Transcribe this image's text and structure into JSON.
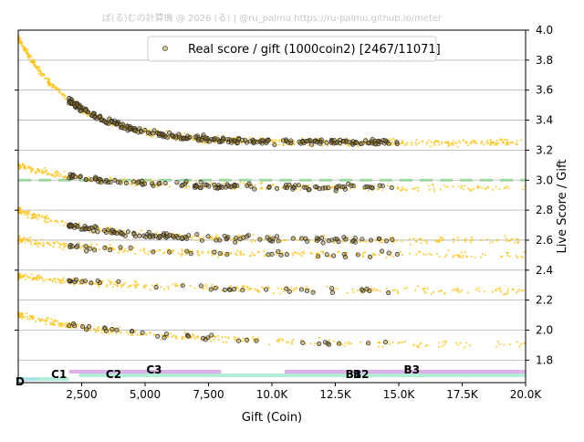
{
  "watermark": "ぱ(る)むの計算機 @ 2026 (る) | @ru_palmu  https://ru-palmu.github.io/meter",
  "chart_data": {
    "type": "scatter",
    "xlabel": "Gift (Coin)",
    "ylabel": "Live Score / Gift",
    "xlim": [
      0,
      20000
    ],
    "ylim": [
      1.65,
      4.0
    ],
    "x_ticks": [
      2500,
      5000,
      7500,
      10000,
      12500,
      15000,
      17500,
      20000
    ],
    "x_tick_labels": [
      "2,500",
      "5,000",
      "7,500",
      "10.0K",
      "12.5K",
      "15.0K",
      "17.5K",
      "20.0K"
    ],
    "y_ticks": [
      1.8,
      2.0,
      2.2,
      2.4,
      2.6,
      2.8,
      3.0,
      3.2,
      3.4,
      3.6,
      3.8,
      4.0
    ],
    "y_tick_labels": [
      "1.8",
      "2.0",
      "2.2",
      "2.4",
      "2.6",
      "2.8",
      "3.0",
      "3.2",
      "3.4",
      "3.6",
      "3.8",
      "4.0"
    ],
    "grid": "horizontal",
    "reference_line": {
      "y": 3.0,
      "style": "dashed",
      "color": "#9fd6a3"
    },
    "legend": {
      "placement": "top-center",
      "label": "Real score / gift (1000coin2) [2467/11071]"
    },
    "colors": {
      "background_points": "#ffc20e",
      "highlight_points": "#2b2b2b",
      "grid": "#b0b0b0"
    },
    "bands": [
      {
        "name": "real",
        "multiplier": 3.25,
        "decay": 0.7,
        "decay_scale": 2200
      },
      {
        "name": "real",
        "multiplier": 2.95,
        "decay": 0.15,
        "decay_scale": 3000
      },
      {
        "name": "real",
        "multiplier": 2.6,
        "decay": 0.2,
        "decay_scale": 3000
      },
      {
        "name": "real",
        "multiplier": 2.5,
        "decay": 0.1,
        "decay_scale": 4000
      },
      {
        "name": "real",
        "multiplier": 2.26,
        "decay": 0.1,
        "decay_scale": 5000
      },
      {
        "name": "real",
        "multiplier": 1.9,
        "decay": 0.2,
        "decay_scale": 5000
      }
    ],
    "rank_labels": [
      {
        "label": "D",
        "x": 0
      },
      {
        "label": "C1",
        "x": 1300
      },
      {
        "label": "C2",
        "x": 3450
      },
      {
        "label": "C3",
        "x": 5050
      },
      {
        "label": "B1",
        "x": 12900
      },
      {
        "label": "B2",
        "x": 13200
      },
      {
        "label": "B3",
        "x": 15200
      }
    ],
    "rank_bands": [
      {
        "x0": 300,
        "x1": 2000,
        "level": 2,
        "color": "#a8ecd0"
      },
      {
        "x0": 2000,
        "x1": 8000,
        "level": 0,
        "color": "#d6a8e6"
      },
      {
        "x0": 2400,
        "x1": 6000,
        "level": 1,
        "color": "#a8ecd0"
      },
      {
        "x0": 6000,
        "x1": 10500,
        "level": 1,
        "color": "#a8ecd0"
      },
      {
        "x0": 10500,
        "x1": 20000,
        "level": 0,
        "color": "#d6a8e6"
      },
      {
        "x0": 10500,
        "x1": 20000,
        "level": 1,
        "color": "#a8ecd0"
      },
      {
        "x0": 0,
        "x1": 800,
        "level": 2,
        "color": "#a8e0ec"
      }
    ]
  }
}
